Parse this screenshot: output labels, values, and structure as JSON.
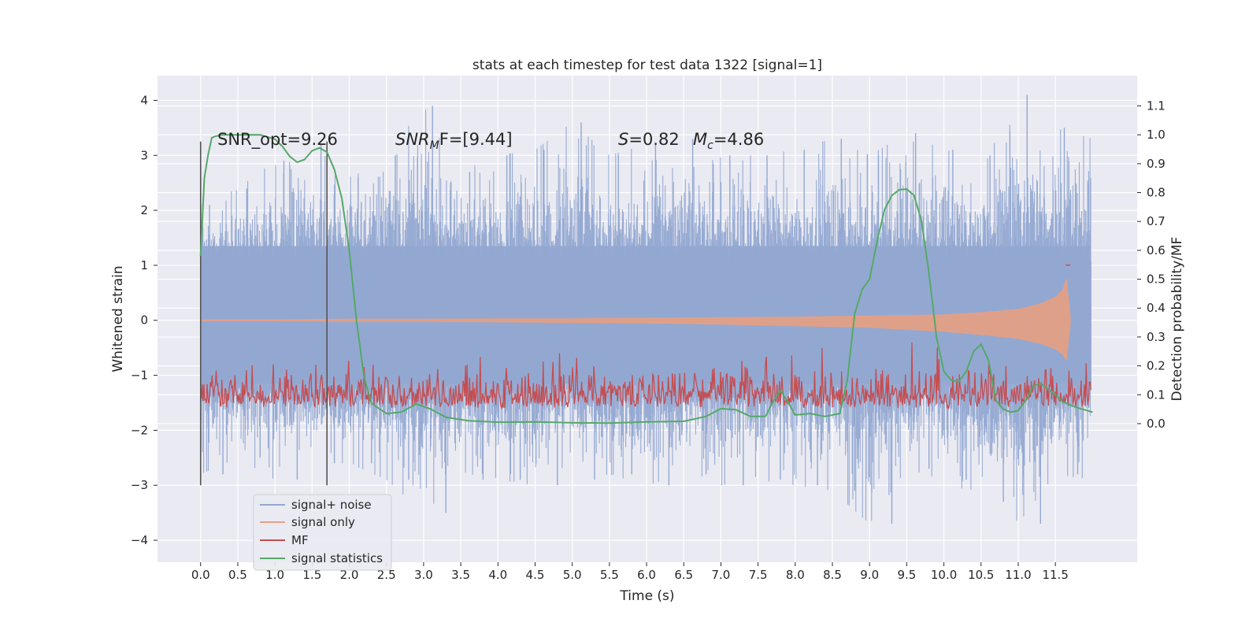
{
  "chart_data": {
    "type": "line",
    "title": "stats at each timestep for test data 1322 [signal=1]",
    "xlabel": "Time (s)",
    "ylabel": "Whitened strain",
    "ylabel_right": "Detection probability/MF",
    "xlim": [
      -0.58,
      12.6
    ],
    "ylim": [
      -4.4,
      4.45
    ],
    "ylim_right": [
      -0.48,
      1.205
    ],
    "x_ticks": [
      "0.0",
      "0.5",
      "1.0",
      "1.5",
      "2.0",
      "2.5",
      "3.0",
      "3.5",
      "4.0",
      "4.5",
      "5.0",
      "5.5",
      "6.0",
      "6.5",
      "7.0",
      "7.5",
      "8.0",
      "8.5",
      "9.0",
      "9.5",
      "10.0",
      "10.5",
      "11.0",
      "11.5"
    ],
    "y_ticks": [
      "4",
      "3",
      "2",
      "1",
      "0",
      "−1",
      "−2",
      "−3",
      "−4"
    ],
    "y_ticks_right": [
      "1.1",
      "1.0",
      "0.9",
      "0.8",
      "0.7",
      "0.6",
      "0.5",
      "0.4",
      "0.3",
      "0.2",
      "0.1",
      "0.0"
    ],
    "grid": true,
    "legend_placement": "lower-left",
    "annotations": {
      "snr_opt": "SNR_opt=9.26",
      "snr_mf": {
        "base": "SNR",
        "sub": "M",
        "rest": "F=[9.44]"
      },
      "s_value": {
        "var": "S",
        "rest": "=0.82"
      },
      "mc_value": {
        "var": "M",
        "sub": "c",
        "rest": "=4.86"
      }
    },
    "vertical_markers": [
      {
        "x": 0.0,
        "y_range": [
          -3.0,
          3.25
        ]
      },
      {
        "x": 1.7,
        "y_range": [
          -3.0,
          3.25
        ]
      }
    ],
    "noise_envelope": {
      "x": [
        0.0,
        0.5,
        1.0,
        1.5,
        2.0,
        2.5,
        3.0,
        3.5,
        4.0,
        4.5,
        5.0,
        5.5,
        6.0,
        6.5,
        7.0,
        7.5,
        8.0,
        8.5,
        9.0,
        9.5,
        10.0,
        10.5,
        11.0,
        11.5,
        12.0
      ],
      "max": [
        2.1,
        2.4,
        2.9,
        3.2,
        2.6,
        3.0,
        3.9,
        2.7,
        3.0,
        3.1,
        3.6,
        3.0,
        3.2,
        3.3,
        3.0,
        3.0,
        3.1,
        3.3,
        3.0,
        3.4,
        3.1,
        3.0,
        4.1,
        3.5,
        3.3
      ],
      "min": [
        -2.8,
        -2.5,
        -2.9,
        -2.6,
        -2.6,
        -2.9,
        -3.5,
        -2.9,
        -2.9,
        -3.0,
        -2.9,
        -2.8,
        -3.0,
        -2.8,
        -3.0,
        -2.9,
        -3.0,
        -3.1,
        -3.7,
        -2.7,
        -2.9,
        -3.3,
        -3.7,
        -2.8,
        -2.9
      ]
    },
    "series": [
      {
        "name": "signal+ noise",
        "color": "#92a8d1"
      },
      {
        "name": "signal only",
        "color": "#e8a082",
        "x": [
          0.0,
          1.0,
          2.0,
          3.0,
          4.0,
          5.0,
          6.0,
          7.0,
          8.0,
          9.0,
          10.0,
          10.5,
          11.0,
          11.3,
          11.5,
          11.6,
          11.65,
          11.7
        ],
        "upper": [
          0.01,
          0.01,
          0.02,
          0.02,
          0.03,
          0.03,
          0.04,
          0.05,
          0.06,
          0.08,
          0.1,
          0.14,
          0.2,
          0.3,
          0.42,
          0.55,
          0.75,
          0.05
        ],
        "lower": [
          -0.01,
          -0.01,
          -0.02,
          -0.02,
          -0.03,
          -0.04,
          -0.05,
          -0.07,
          -0.1,
          -0.13,
          -0.2,
          -0.26,
          -0.33,
          -0.42,
          -0.52,
          -0.62,
          -0.72,
          -0.05
        ]
      },
      {
        "name": "MF",
        "color": "#c44e52",
        "base": 0.05,
        "amplitude": 0.22,
        "peak": {
          "x": 11.67,
          "y": 1.0
        }
      },
      {
        "name": "signal statistics",
        "color": "#55a868",
        "axis": "right",
        "x": [
          0.0,
          0.05,
          0.1,
          0.15,
          0.2,
          0.3,
          0.5,
          0.8,
          1.0,
          1.1,
          1.2,
          1.3,
          1.4,
          1.5,
          1.6,
          1.7,
          1.8,
          1.9,
          2.0,
          2.1,
          2.2,
          2.3,
          2.5,
          2.7,
          2.9,
          3.1,
          3.3,
          3.6,
          4.0,
          4.5,
          5.0,
          5.5,
          6.0,
          6.5,
          6.8,
          7.0,
          7.2,
          7.4,
          7.6,
          7.7,
          7.8,
          7.9,
          8.0,
          8.2,
          8.4,
          8.6,
          8.7,
          8.8,
          8.9,
          9.0,
          9.1,
          9.2,
          9.3,
          9.4,
          9.5,
          9.6,
          9.7,
          9.8,
          9.9,
          10.0,
          10.1,
          10.2,
          10.3,
          10.4,
          10.5,
          10.6,
          10.7,
          10.8,
          10.9,
          11.0,
          11.1,
          11.2,
          11.3,
          11.4,
          11.5,
          11.6,
          11.8,
          12.0
        ],
        "y": [
          0.58,
          0.85,
          0.93,
          0.99,
          0.995,
          1.0,
          1.0,
          1.0,
          0.985,
          0.96,
          0.925,
          0.905,
          0.915,
          0.945,
          0.955,
          0.94,
          0.88,
          0.78,
          0.6,
          0.35,
          0.16,
          0.07,
          0.035,
          0.04,
          0.068,
          0.05,
          0.022,
          0.01,
          0.005,
          0.006,
          0.003,
          0.002,
          0.006,
          0.008,
          0.025,
          0.052,
          0.048,
          0.025,
          0.025,
          0.075,
          0.115,
          0.075,
          0.03,
          0.035,
          0.025,
          0.035,
          0.15,
          0.38,
          0.465,
          0.5,
          0.63,
          0.74,
          0.79,
          0.81,
          0.812,
          0.79,
          0.7,
          0.52,
          0.3,
          0.18,
          0.15,
          0.145,
          0.18,
          0.25,
          0.275,
          0.22,
          0.08,
          0.05,
          0.04,
          0.045,
          0.08,
          0.13,
          0.14,
          0.12,
          0.1,
          0.075,
          0.055,
          0.04
        ]
      }
    ]
  }
}
